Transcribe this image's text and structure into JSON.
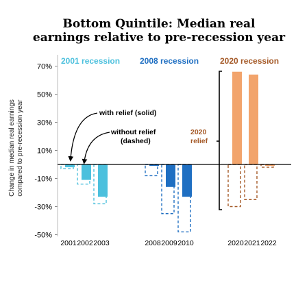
{
  "chart_data": {
    "type": "bar",
    "title": [
      "Bottom Quintile: Median real",
      "earnings relative to pre-recession year"
    ],
    "ylabel": [
      "Change in median real earnings",
      "compared to pre-recession year"
    ],
    "ylim": [
      -50,
      75
    ],
    "yticks": [
      70,
      50,
      30,
      10,
      -10,
      -30,
      -50
    ],
    "yticklabels": [
      "70%",
      "50%",
      "30%",
      "10%",
      "-10%",
      "-30%",
      "-50%"
    ],
    "groups": [
      {
        "name": "2001 recession",
        "color": "#4cc0dd",
        "years": [
          "2001",
          "2002",
          "2003"
        ],
        "with_relief": [
          -2,
          -11,
          -23
        ],
        "without_relief": [
          -3,
          -14,
          -28
        ]
      },
      {
        "name": "2008 recession",
        "color": "#1f6fc2",
        "years": [
          "2008",
          "2009",
          "2010"
        ],
        "with_relief": [
          -1,
          -16,
          -23
        ],
        "without_relief": [
          -8,
          -35,
          -48
        ]
      },
      {
        "name": "2020 recession",
        "color": "#f2a46c",
        "dashed_color": "#a55a28",
        "years": [
          "2020",
          "2021",
          "2022"
        ],
        "with_relief": [
          66,
          64,
          -1
        ],
        "without_relief": [
          -30,
          -25,
          -2
        ]
      }
    ],
    "annotations": {
      "with_relief": "with relief (solid)",
      "without_relief": [
        "without relief",
        "(dashed)"
      ],
      "relief_2020": [
        "2020",
        "relief"
      ]
    }
  }
}
